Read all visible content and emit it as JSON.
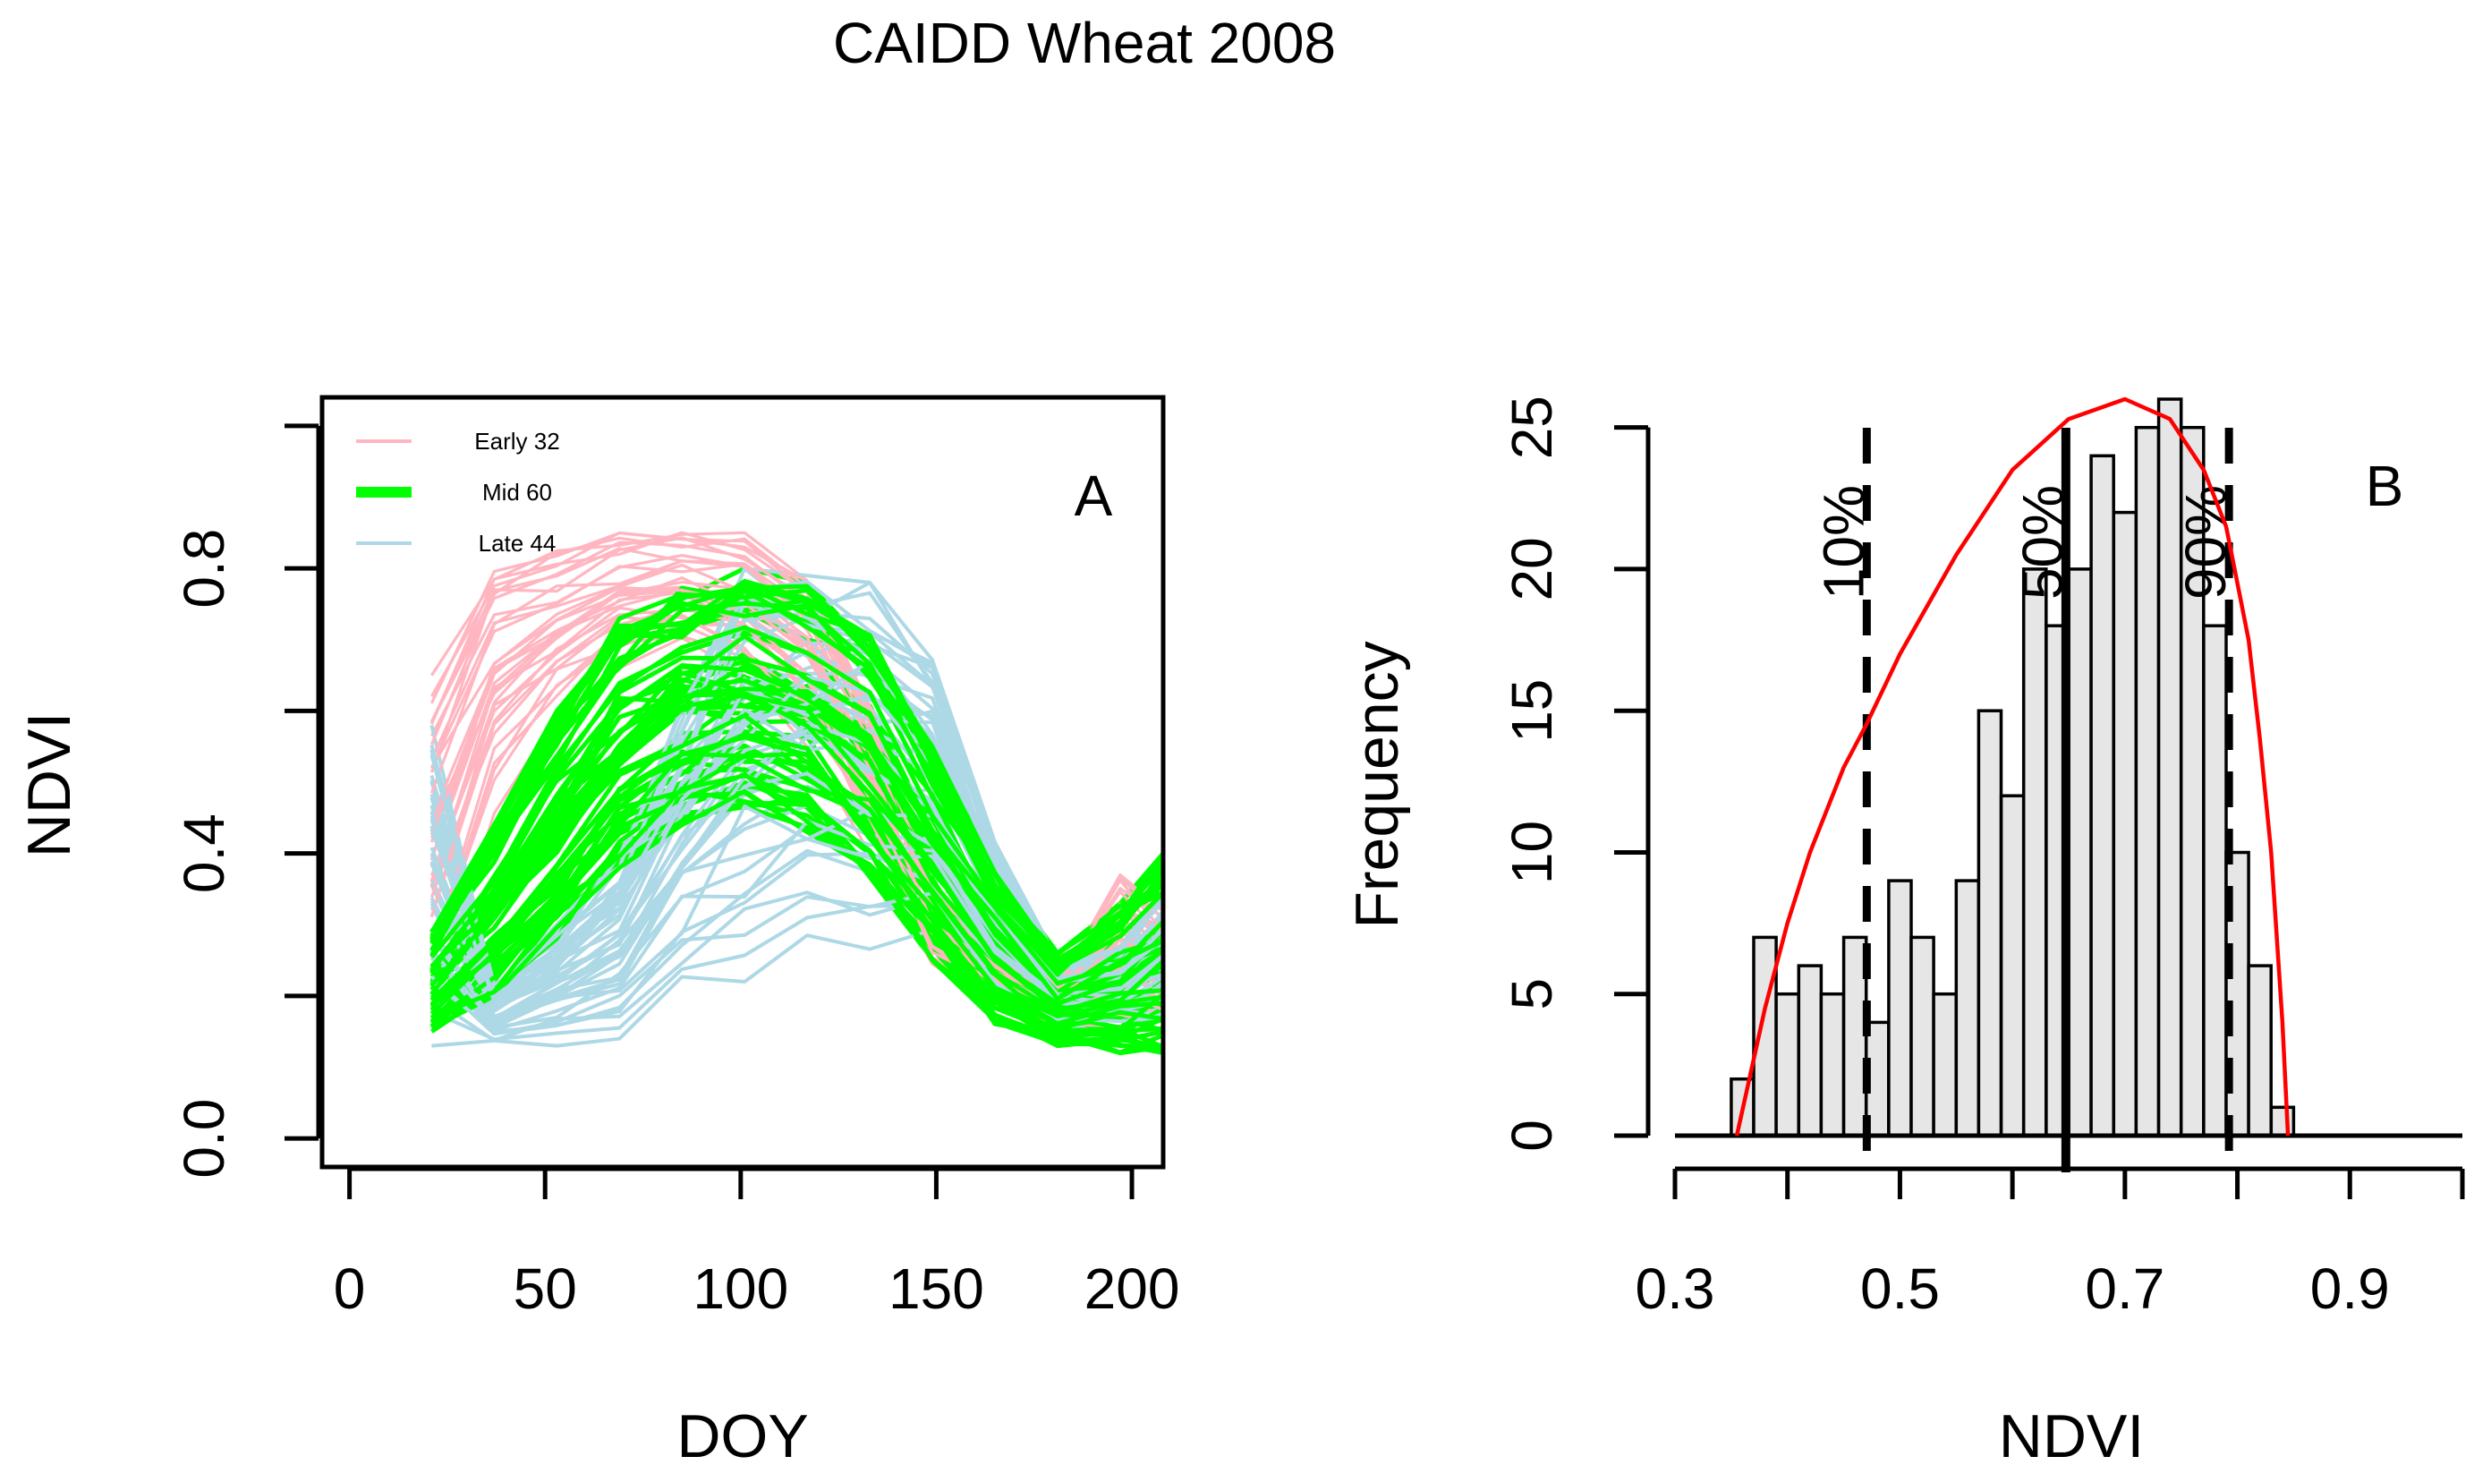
{
  "title": "CAIDD Wheat 2008",
  "chart_data": [
    {
      "type": "line",
      "panel_label": "A",
      "xlabel": "DOY",
      "ylabel": "NDVI",
      "xlim": [
        -7,
        208
      ],
      "ylim": [
        -0.04,
        1.04
      ],
      "x_ticks": [
        0,
        50,
        100,
        150,
        200
      ],
      "x_tick_labels": [
        "0",
        "50",
        "100",
        "150",
        "200"
      ],
      "y_ticks": [
        0.0,
        0.2,
        0.4,
        0.6,
        0.8,
        1.0
      ],
      "y_tick_labels": [
        "0.0",
        "0.4",
        "0.8"
      ],
      "y_tick_label_values": [
        0.0,
        0.4,
        0.8
      ],
      "legend_position": "top-left",
      "x": [
        21,
        37,
        53,
        69,
        85,
        101,
        117,
        133,
        149,
        165,
        181,
        197,
        208
      ],
      "series": [
        {
          "name": "Early 32",
          "color": "#ffb6c1",
          "count": 32,
          "low": [
            0.15,
            0.45,
            0.58,
            0.66,
            0.68,
            0.65,
            0.55,
            0.4,
            0.24,
            0.19,
            0.16,
            0.14,
            0.14
          ],
          "high": [
            0.65,
            0.81,
            0.83,
            0.85,
            0.86,
            0.85,
            0.8,
            0.62,
            0.36,
            0.28,
            0.22,
            0.37,
            0.32
          ]
        },
        {
          "name": "Mid 60",
          "color": "#00ff00",
          "count": 60,
          "low": [
            0.15,
            0.2,
            0.28,
            0.38,
            0.44,
            0.46,
            0.43,
            0.35,
            0.25,
            0.16,
            0.13,
            0.12,
            0.12
          ],
          "high": [
            0.29,
            0.44,
            0.6,
            0.73,
            0.78,
            0.8,
            0.78,
            0.72,
            0.55,
            0.38,
            0.26,
            0.33,
            0.4
          ]
        },
        {
          "name": "Late 44",
          "color": "#add8e6",
          "count": 44,
          "low": [
            0.13,
            0.13,
            0.13,
            0.14,
            0.18,
            0.22,
            0.27,
            0.26,
            0.26,
            0.2,
            0.16,
            0.14,
            0.14
          ],
          "high": [
            0.58,
            0.22,
            0.3,
            0.4,
            0.61,
            0.8,
            0.79,
            0.78,
            0.7,
            0.42,
            0.25,
            0.27,
            0.35
          ]
        }
      ]
    },
    {
      "type": "bar",
      "subtype": "histogram",
      "panel_label": "B",
      "xlabel": "NDVI",
      "ylabel": "Frequency",
      "xlim": [
        0.3,
        1.0
      ],
      "ylim": [
        0,
        26
      ],
      "x_ticks": [
        0.3,
        0.4,
        0.5,
        0.6,
        0.7,
        0.8,
        0.9,
        1.0
      ],
      "x_tick_labels": [
        "0.3",
        "0.5",
        "0.7",
        "0.9"
      ],
      "x_tick_label_values": [
        0.3,
        0.5,
        0.7,
        0.9
      ],
      "y_ticks": [
        0,
        5,
        10,
        15,
        20,
        25
      ],
      "y_tick_labels": [
        "0",
        "5",
        "10",
        "15",
        "20",
        "25"
      ],
      "bin_width": 0.02,
      "bin_start": 0.35,
      "counts": [
        2,
        7,
        5,
        6,
        5,
        7,
        4,
        9,
        7,
        5,
        9,
        15,
        12,
        20,
        18,
        20,
        24,
        22,
        25,
        26,
        25,
        18,
        10,
        6,
        1
      ],
      "bar_color": "#e6e6e6",
      "quantiles": [
        {
          "label": "10%",
          "value": 0.4705,
          "style": "dashed"
        },
        {
          "label": "50%",
          "value": 0.6475,
          "style": "solid"
        },
        {
          "label": "90%",
          "value": 0.7925,
          "style": "dashed"
        }
      ],
      "curve": {
        "color": "#ff0000",
        "x": [
          0.355,
          0.38,
          0.4,
          0.42,
          0.45,
          0.47,
          0.5,
          0.55,
          0.6,
          0.65,
          0.7,
          0.74,
          0.77,
          0.79,
          0.8,
          0.81,
          0.82,
          0.83,
          0.84,
          0.845
        ],
        "y": [
          0,
          4.5,
          7.5,
          10,
          13,
          14.5,
          17,
          20.5,
          23.5,
          25.3,
          26,
          25.3,
          23.5,
          21.5,
          19.5,
          17.5,
          14,
          10,
          4,
          0
        ]
      }
    }
  ]
}
